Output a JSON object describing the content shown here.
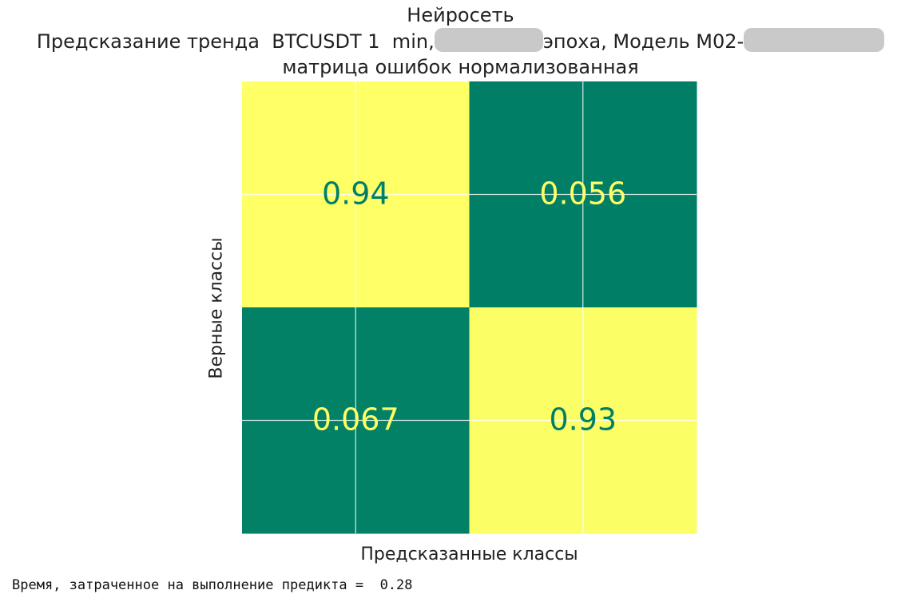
{
  "chart_data": {
    "type": "heatmap",
    "title_lines": {
      "line1": "Нейросеть",
      "line2_part1": "Предсказание тренда  BTCUSDT 1  min,",
      "line2_part2": "эпоха, Модель М02-",
      "line3": "матрица ошибок нормализованная"
    },
    "xlabel": "Предсказанные классы",
    "ylabel": "Верные классы",
    "matrix": [
      [
        0.94,
        0.056
      ],
      [
        0.067,
        0.93
      ]
    ],
    "cell_labels": [
      [
        "0.94",
        "0.056"
      ],
      [
        "0.067",
        "0.93"
      ]
    ],
    "colormap": {
      "low": "#007f66",
      "high": "#ffff66"
    },
    "grid": true
  },
  "output": {
    "text": "Время, затраченное на выполнение предикта =  0.28"
  }
}
